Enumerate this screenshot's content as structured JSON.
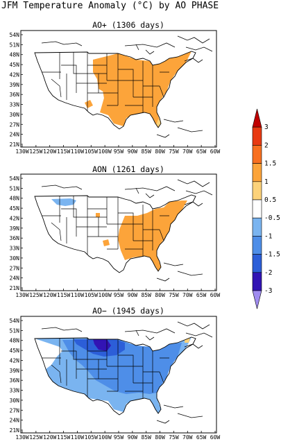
{
  "title": "JFM Temperature Anomaly (°C) by AO PHASE",
  "panels": [
    {
      "id": "ao-plus",
      "title": "AO+ (1306 days)"
    },
    {
      "id": "ao-neutral",
      "title": "AON (1261 days)"
    },
    {
      "id": "ao-minus",
      "title": "AO− (1945 days)"
    }
  ],
  "lat_labels": [
    "54N",
    "51N",
    "48N",
    "45N",
    "42N",
    "39N",
    "36N",
    "33N",
    "30N",
    "27N",
    "24N",
    "21N"
  ],
  "lon_labels": [
    "130W",
    "125W",
    "120W",
    "115W",
    "110W",
    "105W",
    "100W",
    "95W",
    "90W",
    "85W",
    "80W",
    "75W",
    "70W",
    "65W",
    "60W"
  ],
  "colorbar": {
    "labels": [
      "3",
      "2",
      "1.5",
      "1",
      "0.5",
      "-0.5",
      "-1",
      "-1.5",
      "-2",
      "-3"
    ],
    "colors": [
      "#c00000",
      "#e83a12",
      "#f87020",
      "#fca43a",
      "#fcd27a",
      "#ffffff",
      "#7ab4f0",
      "#4e8ee8",
      "#2c5ed8",
      "#3214b4",
      "#a08cf0"
    ]
  }
}
